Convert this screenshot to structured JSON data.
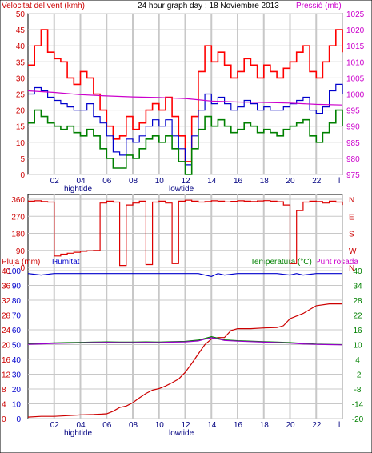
{
  "header": {
    "left_label": "Velocitat del vent (kmh)",
    "title": "24 hour graph day : 18 Noviembre 2013",
    "right_label": "Pressió (mb)"
  },
  "panel3_labels": {
    "rain": "Pluja (mm)",
    "humidity": "Humitat",
    "temperature": "Temperatura (°C)",
    "dewpoint": "Punt rosada"
  },
  "markers": {
    "hightide": "hightide",
    "lowtide": "lowtide"
  },
  "colors": {
    "gust": "#ff0000",
    "wind_avg": "#0000cc",
    "wind_low": "#008000",
    "pressure": "#cc00cc",
    "direction": "#dd0000",
    "humidity": "#0000cc",
    "rain": "#cc0000",
    "temperature": "#008000",
    "dewpoint": "#9900cc",
    "frame": "#000000",
    "grid": "#c8c8c8"
  },
  "chart_data": [
    {
      "type": "line",
      "name": "wind-pressure",
      "x_ticks": [
        "02",
        "04",
        "06",
        "08",
        "10",
        "12",
        "14",
        "16",
        "18",
        "20",
        "22",
        "l"
      ],
      "xlim": [
        0,
        24
      ],
      "ylim_left": [
        0,
        50
      ],
      "y_ticks_left": [
        0,
        5,
        10,
        15,
        20,
        25,
        30,
        35,
        40,
        45,
        50
      ],
      "ylim_right": [
        975,
        1025
      ],
      "y_ticks_right": [
        975,
        980,
        985,
        990,
        995,
        1000,
        1005,
        1010,
        1015,
        1020,
        1025
      ],
      "series": [
        {
          "key": "gust",
          "axis": "left",
          "x": [
            0,
            0.5,
            1,
            1.5,
            2,
            2.5,
            3,
            3.5,
            4,
            4.5,
            5,
            5.5,
            6,
            6.5,
            7,
            7.5,
            8,
            8.5,
            9,
            9.5,
            10,
            10.5,
            11,
            11.5,
            12,
            12.5,
            13,
            13.5,
            14,
            14.5,
            15,
            15.5,
            16,
            16.5,
            17,
            17.5,
            18,
            18.5,
            19,
            19.5,
            20,
            20.5,
            21,
            21.5,
            22,
            22.5,
            23,
            23.5,
            24
          ],
          "values": [
            34,
            40,
            45,
            38,
            36,
            35,
            30,
            28,
            32,
            30,
            25,
            20,
            15,
            11,
            12,
            18,
            14,
            16,
            20,
            22,
            20,
            24,
            18,
            12,
            4,
            18,
            32,
            40,
            35,
            38,
            34,
            30,
            32,
            36,
            34,
            30,
            34,
            32,
            30,
            33,
            35,
            38,
            40,
            32,
            30,
            35,
            40,
            45,
            38
          ]
        },
        {
          "key": "wind_avg",
          "axis": "left",
          "x": [
            0,
            0.5,
            1,
            1.5,
            2,
            2.5,
            3,
            3.5,
            4,
            4.5,
            5,
            5.5,
            6,
            6.5,
            7,
            7.5,
            8,
            8.5,
            9,
            9.5,
            10,
            10.5,
            11,
            11.5,
            12,
            12.5,
            13,
            13.5,
            14,
            14.5,
            15,
            15.5,
            16,
            16.5,
            17,
            17.5,
            18,
            18.5,
            19,
            19.5,
            20,
            20.5,
            21,
            21.5,
            22,
            22.5,
            23,
            23.5,
            24
          ],
          "values": [
            25,
            27,
            26,
            24,
            23,
            22,
            21,
            20,
            20,
            22,
            18,
            16,
            12,
            7,
            6,
            11,
            10,
            12,
            15,
            17,
            15,
            17,
            12,
            8,
            3,
            12,
            20,
            25,
            22,
            24,
            22,
            20,
            21,
            23,
            22,
            20,
            21,
            20,
            20,
            21,
            22,
            23,
            24,
            20,
            19,
            21,
            26,
            28,
            25
          ]
        },
        {
          "key": "wind_low",
          "axis": "left",
          "x": [
            0,
            0.5,
            1,
            1.5,
            2,
            2.5,
            3,
            3.5,
            4,
            4.5,
            5,
            5.5,
            6,
            6.5,
            7,
            7.5,
            8,
            8.5,
            9,
            9.5,
            10,
            10.5,
            11,
            11.5,
            12,
            12.5,
            13,
            13.5,
            14,
            14.5,
            15,
            15.5,
            16,
            16.5,
            17,
            17.5,
            18,
            18.5,
            19,
            19.5,
            20,
            20.5,
            21,
            21.5,
            22,
            22.5,
            23,
            23.5,
            24
          ],
          "values": [
            16,
            20,
            18,
            16,
            15,
            14,
            15,
            13,
            12,
            14,
            12,
            8,
            5,
            2,
            2,
            6,
            5,
            8,
            11,
            12,
            10,
            12,
            8,
            4,
            0,
            8,
            14,
            18,
            15,
            17,
            15,
            13,
            14,
            16,
            15,
            13,
            14,
            13,
            12,
            14,
            15,
            16,
            17,
            12,
            10,
            13,
            16,
            20,
            15
          ]
        },
        {
          "key": "pressure",
          "axis": "right",
          "x": [
            0,
            2,
            4,
            6,
            8,
            10,
            12,
            14,
            16,
            18,
            20,
            22,
            24
          ],
          "values": [
            1001,
            1000.5,
            999.8,
            999.4,
            999.1,
            998.9,
            998.6,
            997.8,
            997.5,
            997.4,
            997.2,
            996.8,
            996.6
          ]
        }
      ]
    },
    {
      "type": "line",
      "name": "wind-direction",
      "x_ticks": [
        "02",
        "04",
        "06",
        "08",
        "10",
        "12",
        "14",
        "16",
        "18",
        "20",
        "22",
        "l"
      ],
      "xlim": [
        0,
        24
      ],
      "ylim": [
        0,
        360
      ],
      "y_ticks": [
        0,
        90,
        180,
        270,
        360
      ],
      "y_ticks_right": [
        "N",
        "W",
        "S",
        "E",
        "N"
      ],
      "series": [
        {
          "key": "direction",
          "x": [
            0,
            0.5,
            1,
            1.5,
            2,
            2.5,
            3,
            3.5,
            4,
            4.5,
            5,
            5.5,
            6,
            6.5,
            7,
            7.5,
            8,
            8.5,
            9,
            9.5,
            10,
            10.5,
            11,
            11.5,
            12,
            12.5,
            13,
            13.5,
            14,
            14.5,
            15,
            15.5,
            16,
            16.5,
            17,
            17.5,
            18,
            18.5,
            19,
            19.5,
            20,
            20.5,
            21,
            21.5,
            22,
            22.5,
            23,
            23.5,
            24
          ],
          "values": [
            350,
            352,
            348,
            345,
            60,
            70,
            75,
            80,
            85,
            88,
            90,
            340,
            350,
            345,
            10,
            330,
            340,
            350,
            15,
            345,
            350,
            340,
            20,
            350,
            355,
            350,
            345,
            348,
            352,
            350,
            346,
            349,
            352,
            350,
            348,
            351,
            353,
            350,
            347,
            330,
            20,
            300,
            345,
            350,
            348,
            340,
            350,
            345,
            330
          ]
        }
      ]
    },
    {
      "type": "line",
      "name": "rain-humidity-temperature",
      "x_ticks": [
        "02",
        "04",
        "06",
        "08",
        "10",
        "12",
        "14",
        "16",
        "18",
        "20",
        "22",
        "l"
      ],
      "xlim": [
        0,
        24
      ],
      "ylim_left": [
        0,
        100
      ],
      "y_ticks_left": [
        0,
        10,
        20,
        30,
        40,
        50,
        60,
        70,
        80,
        90,
        100
      ],
      "y_ticks_left_rain": [
        0,
        4,
        8,
        12,
        16,
        20,
        24,
        28,
        32,
        36,
        40
      ],
      "ylim_right": [
        -20,
        40
      ],
      "y_ticks_right": [
        -20,
        -14,
        -8,
        -2,
        4,
        10,
        16,
        22,
        28,
        34,
        40
      ],
      "series": [
        {
          "key": "humidity",
          "axis": "left",
          "x": [
            0,
            1,
            2,
            3,
            4,
            6,
            8,
            10,
            12,
            13,
            13.5,
            14,
            14.5,
            15,
            16,
            18,
            19,
            20,
            20.5,
            21,
            22,
            24
          ],
          "values": [
            98,
            97,
            98,
            98,
            98,
            98,
            98,
            98,
            98,
            98,
            97,
            96,
            98,
            97,
            98,
            98,
            98,
            97,
            98,
            97,
            98,
            98
          ]
        },
        {
          "key": "rain",
          "axis": "left_rain",
          "x": [
            0,
            1,
            2,
            3,
            4,
            5,
            6,
            6.5,
            7,
            7.5,
            8,
            8.5,
            9,
            9.5,
            10,
            10.5,
            11,
            11.5,
            12,
            12.5,
            13,
            13.5,
            14,
            14.5,
            15,
            15.5,
            16,
            17,
            18,
            19,
            19.5,
            20,
            21,
            22,
            23,
            24
          ],
          "values": [
            0.4,
            0.6,
            0.6,
            0.8,
            1,
            1.1,
            1.3,
            2,
            3,
            3.4,
            4.3,
            5.6,
            6.8,
            7.7,
            8.1,
            8.8,
            9.7,
            10.7,
            12.5,
            14.9,
            17.5,
            20,
            21.5,
            21.9,
            21.9,
            23.8,
            24.3,
            24.3,
            24.5,
            24.6,
            25.1,
            27,
            28.4,
            30.5,
            31,
            31
          ]
        },
        {
          "key": "temperature",
          "axis": "right",
          "x": [
            0,
            1,
            2,
            3,
            4,
            5,
            6,
            7,
            8,
            9,
            10,
            11,
            12,
            13,
            13.5,
            14,
            14.5,
            15,
            16,
            17,
            18,
            19,
            20,
            21,
            22,
            23,
            24
          ],
          "values": [
            10.3,
            10.5,
            10.7,
            10.8,
            10.9,
            11,
            11.1,
            11,
            11,
            11.1,
            11,
            11.2,
            11.3,
            11.8,
            12.5,
            13.2,
            12.6,
            11.9,
            11.6,
            11.4,
            11.2,
            11,
            10.8,
            10.5,
            10.2,
            10.1,
            10
          ]
        },
        {
          "key": "dewpoint",
          "axis": "right",
          "x": [
            0,
            1,
            2,
            3,
            4,
            5,
            6,
            7,
            8,
            9,
            10,
            11,
            12,
            13,
            13.5,
            14,
            14.5,
            15,
            16,
            17,
            18,
            19,
            20,
            21,
            22,
            23,
            24
          ],
          "values": [
            10.1,
            10.3,
            10.5,
            10.6,
            10.7,
            10.8,
            10.9,
            10.8,
            10.8,
            10.9,
            10.8,
            11,
            11.1,
            11.5,
            12.2,
            12.8,
            12.3,
            11.7,
            11.4,
            11.2,
            11,
            10.8,
            10.6,
            10.3,
            10.1,
            10,
            9.9
          ]
        }
      ]
    }
  ]
}
